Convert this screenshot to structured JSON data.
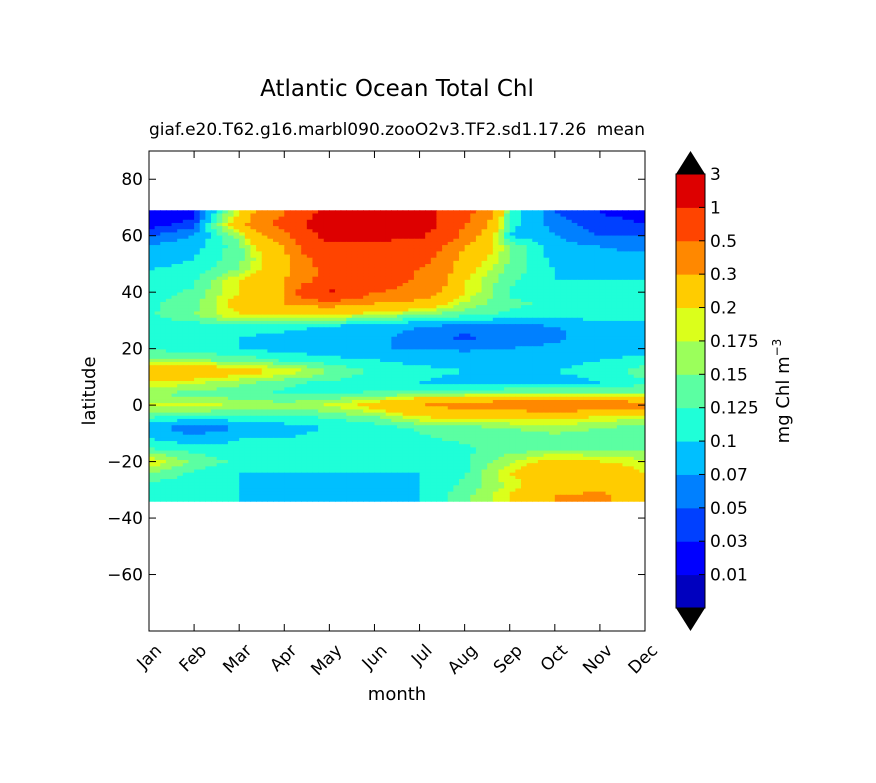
{
  "chart_data": {
    "type": "heatmap",
    "title": "Atlantic Ocean Total Chl",
    "subtitle_left": "giaf.e20.T62.g16.marbl090.zooO2v3.TF2.sd1.17.26",
    "subtitle_right": "mean",
    "xlabel": "month",
    "ylabel": "latitude",
    "x_ticks": [
      "Jan",
      "Feb",
      "Mar",
      "Apr",
      "May",
      "Jun",
      "Jul",
      "Aug",
      "Sep",
      "Oct",
      "Nov",
      "Dec"
    ],
    "xlim": [
      0,
      11
    ],
    "ylim": [
      -80,
      90
    ],
    "y_ticks": [
      80,
      60,
      40,
      20,
      0,
      -20,
      -40,
      -60
    ],
    "data_lat_range": [
      -34,
      69
    ],
    "colorbar": {
      "label": "mg Chl m",
      "label_superscript": "−3",
      "extend": "both",
      "levels": [
        "0.01",
        "0.03",
        "0.05",
        "0.07",
        "0.1",
        "0.125",
        "0.15",
        "0.175",
        "0.2",
        "0.3",
        "0.5",
        "1",
        "3"
      ],
      "colors": [
        "#00007f",
        "#0000bf",
        "#0000ff",
        "#0040ff",
        "#0080ff",
        "#00bfff",
        "#1fffd8",
        "#5bffa2",
        "#9bff5b",
        "#dbff1b",
        "#ffcc00",
        "#ff8800",
        "#ff4400",
        "#dd0000",
        "#800000"
      ]
    },
    "series": [
      {
        "rows": [
          {
            "lat": 68,
            "values": [
              0.01,
              0.02,
              0.2,
              0.5,
              1.2,
              1.3,
              1.2,
              0.6,
              0.12,
              0.05,
              0.03,
              0.02
            ]
          },
          {
            "lat": 64,
            "values": [
              0.02,
              0.04,
              0.25,
              0.6,
              1.5,
              1.6,
              1.3,
              0.5,
              0.11,
              0.06,
              0.04,
              0.03
            ]
          },
          {
            "lat": 60,
            "values": [
              0.05,
              0.07,
              0.16,
              0.4,
              1.2,
              1.2,
              1.1,
              0.4,
              0.1,
              0.07,
              0.05,
              0.05
            ]
          },
          {
            "lat": 56,
            "values": [
              0.07,
              0.09,
              0.14,
              0.3,
              0.9,
              0.8,
              0.7,
              0.3,
              0.15,
              0.08,
              0.07,
              0.06
            ]
          },
          {
            "lat": 52,
            "values": [
              0.08,
              0.1,
              0.14,
              0.25,
              0.7,
              0.7,
              0.6,
              0.25,
              0.15,
              0.09,
              0.08,
              0.08
            ]
          },
          {
            "lat": 48,
            "values": [
              0.1,
              0.11,
              0.15,
              0.25,
              0.6,
              0.6,
              0.5,
              0.22,
              0.14,
              0.1,
              0.09,
              0.09
            ]
          },
          {
            "lat": 44,
            "values": [
              0.1,
              0.12,
              0.2,
              0.3,
              0.6,
              0.7,
              0.45,
              0.2,
              0.13,
              0.1,
              0.1,
              0.1
            ]
          },
          {
            "lat": 40,
            "values": [
              0.11,
              0.13,
              0.2,
              0.3,
              1.1,
              0.5,
              0.4,
              0.2,
              0.12,
              0.11,
              0.11,
              0.11
            ]
          },
          {
            "lat": 36,
            "values": [
              0.12,
              0.14,
              0.22,
              0.3,
              0.35,
              0.3,
              0.25,
              0.17,
              0.13,
              0.12,
              0.12,
              0.12
            ]
          },
          {
            "lat": 32,
            "values": [
              0.12,
              0.15,
              0.2,
              0.21,
              0.2,
              0.17,
              0.15,
              0.13,
              0.12,
              0.11,
              0.12,
              0.12
            ]
          },
          {
            "lat": 28,
            "values": [
              0.11,
              0.11,
              0.12,
              0.11,
              0.1,
              0.085,
              0.07,
              0.065,
              0.065,
              0.07,
              0.08,
              0.09
            ]
          },
          {
            "lat": 24,
            "values": [
              0.1,
              0.1,
              0.1,
              0.09,
              0.08,
              0.075,
              0.06,
              0.045,
              0.06,
              0.065,
              0.08,
              0.09
            ]
          },
          {
            "lat": 20,
            "values": [
              0.12,
              0.11,
              0.1,
              0.09,
              0.08,
              0.07,
              0.07,
              0.065,
              0.07,
              0.075,
              0.08,
              0.09
            ]
          },
          {
            "lat": 16,
            "values": [
              0.16,
              0.15,
              0.14,
              0.12,
              0.11,
              0.1,
              0.09,
              0.085,
              0.09,
              0.09,
              0.1,
              0.11
            ]
          },
          {
            "lat": 12,
            "values": [
              0.25,
              0.25,
              0.22,
              0.2,
              0.15,
              0.12,
              0.11,
              0.1,
              0.1,
              0.1,
              0.11,
              0.14
            ]
          },
          {
            "lat": 8,
            "values": [
              0.2,
              0.18,
              0.16,
              0.13,
              0.12,
              0.11,
              0.1,
              0.09,
              0.08,
              0.09,
              0.1,
              0.12
            ]
          },
          {
            "lat": 4,
            "values": [
              0.15,
              0.14,
              0.13,
              0.12,
              0.12,
              0.13,
              0.14,
              0.15,
              0.16,
              0.16,
              0.15,
              0.15
            ]
          },
          {
            "lat": 0,
            "values": [
              0.18,
              0.19,
              0.17,
              0.16,
              0.18,
              0.22,
              0.3,
              0.35,
              0.38,
              0.4,
              0.4,
              0.35
            ]
          },
          {
            "lat": -4,
            "values": [
              0.13,
              0.12,
              0.12,
              0.12,
              0.13,
              0.15,
              0.2,
              0.22,
              0.22,
              0.22,
              0.2,
              0.18
            ]
          },
          {
            "lat": -8,
            "values": [
              0.08,
              0.05,
              0.07,
              0.09,
              0.1,
              0.11,
              0.13,
              0.14,
              0.15,
              0.16,
              0.15,
              0.14
            ]
          },
          {
            "lat": -12,
            "values": [
              0.1,
              0.08,
              0.1,
              0.1,
              0.11,
              0.11,
              0.12,
              0.13,
              0.14,
              0.14,
              0.14,
              0.13
            ]
          },
          {
            "lat": -16,
            "values": [
              0.13,
              0.12,
              0.11,
              0.11,
              0.11,
              0.11,
              0.11,
              0.12,
              0.14,
              0.15,
              0.15,
              0.15
            ]
          },
          {
            "lat": -20,
            "values": [
              0.2,
              0.14,
              0.12,
              0.11,
              0.11,
              0.11,
              0.11,
              0.12,
              0.17,
              0.22,
              0.2,
              0.18
            ]
          },
          {
            "lat": -24,
            "values": [
              0.15,
              0.12,
              0.1,
              0.1,
              0.1,
              0.1,
              0.1,
              0.12,
              0.2,
              0.25,
              0.25,
              0.2
            ]
          },
          {
            "lat": -28,
            "values": [
              0.12,
              0.11,
              0.1,
              0.09,
              0.09,
              0.09,
              0.1,
              0.13,
              0.18,
              0.25,
              0.25,
              0.2
            ]
          },
          {
            "lat": -32,
            "values": [
              0.11,
              0.1,
              0.1,
              0.09,
              0.09,
              0.085,
              0.1,
              0.14,
              0.2,
              0.3,
              0.32,
              0.25
            ]
          },
          {
            "lat": -34,
            "values": [
              0.11,
              0.1,
              0.1,
              0.09,
              0.09,
              0.085,
              0.1,
              0.14,
              0.2,
              0.3,
              0.32,
              0.25
            ]
          }
        ]
      }
    ]
  }
}
